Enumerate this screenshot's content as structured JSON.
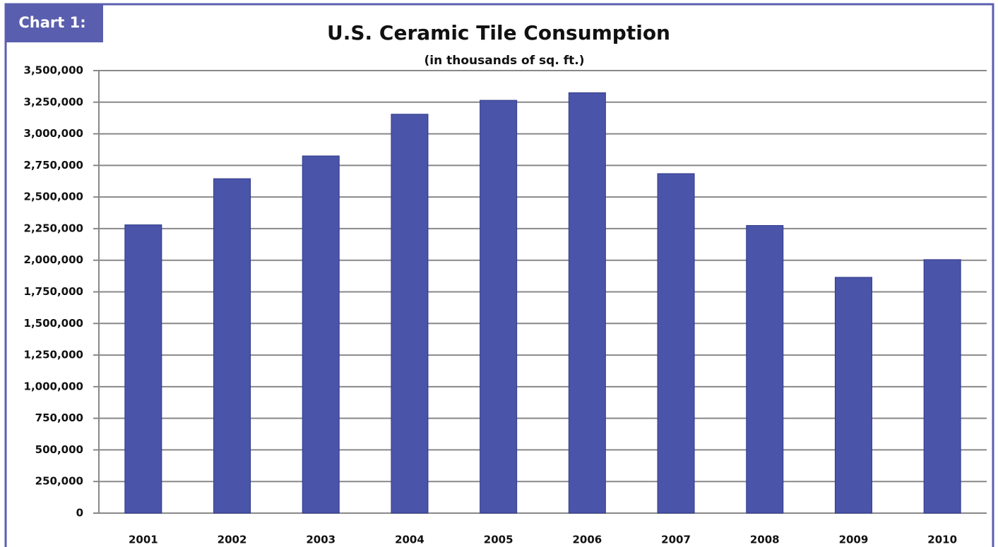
{
  "badge": "Chart 1:",
  "chart_data": {
    "type": "bar",
    "title": "U.S. Ceramic Tile Consumption",
    "subtitle": "(in thousands of sq. ft.)",
    "categories": [
      "2001",
      "2002",
      "2003",
      "2004",
      "2005",
      "2006",
      "2007",
      "2008",
      "2009",
      "2010"
    ],
    "values": [
      2280000,
      2645000,
      2825000,
      3155000,
      3265000,
      3325000,
      2685000,
      2275000,
      1865000,
      2005000
    ],
    "color": "#4a54a8",
    "ylim": [
      0,
      3500000
    ],
    "yticks": [
      0,
      {
        "value": 250000,
        "label": "250,000"
      },
      {
        "value": 500000,
        "label": "500,000"
      },
      {
        "value": 750000,
        "label": "750,000"
      },
      {
        "value": 1000000,
        "label": "1,000,000"
      },
      {
        "value": 1250000,
        "label": "1,250,000"
      },
      {
        "value": 1500000,
        "label": "1,500,000"
      },
      {
        "value": 1750000,
        "label": "1,750,000"
      },
      {
        "value": 2000000,
        "label": "2,000,000"
      },
      {
        "value": 2250000,
        "label": "2,250,000"
      },
      {
        "value": 2500000,
        "label": "2,500,000"
      },
      {
        "value": 2750000,
        "label": "2,750,000"
      },
      {
        "value": 3000000,
        "label": "3,000,000"
      },
      {
        "value": 3250000,
        "label": "3,250,000"
      },
      {
        "value": 3500000,
        "label": "3,500,000"
      }
    ],
    "grid": true
  }
}
